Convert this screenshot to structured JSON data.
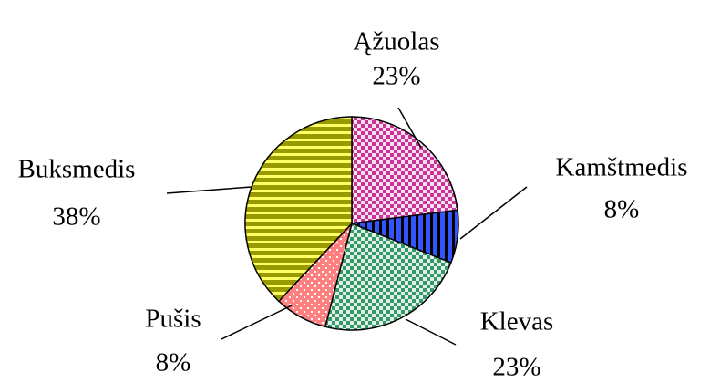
{
  "chart_data": {
    "type": "pie",
    "categories": [
      "Ąžuolas",
      "Kamštmedis",
      "Klevas",
      "Pušis",
      "Buksmedis"
    ],
    "values": [
      23,
      8,
      23,
      8,
      38
    ],
    "value_labels": [
      "23%",
      "8%",
      "23%",
      "8%",
      "38%"
    ],
    "colors": [
      "#cc3399",
      "#3355ff",
      "#339966",
      "#ff8080",
      "#999900"
    ],
    "patterns": [
      "checker",
      "vertical-stripes",
      "checker",
      "dots",
      "horizontal-stripes"
    ]
  }
}
